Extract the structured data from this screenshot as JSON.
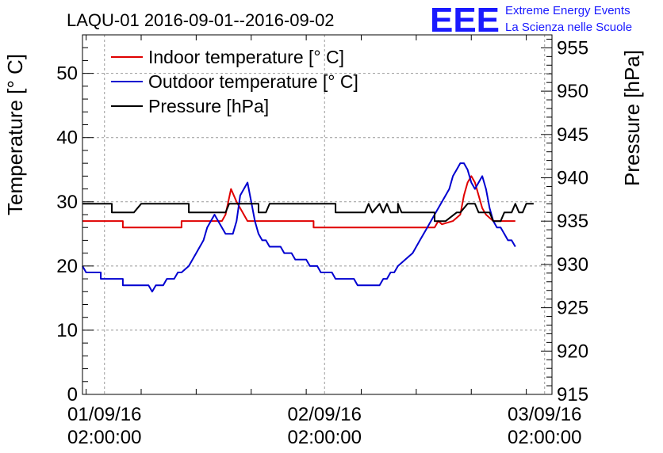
{
  "chart_data": {
    "type": "line",
    "title": "LAQU-01 2016-09-01--2016-09-02",
    "logo": {
      "mark": "EEE",
      "line1": "Extreme Energy Events",
      "line2": "La Scienza nelle Scuole",
      "color": "#1a1aff"
    },
    "ylabel_left": "Temperature [° C]",
    "ylabel_right": "Pressure [hPa]",
    "ylim_left": [
      0,
      56
    ],
    "ylim_right": [
      915,
      956.5
    ],
    "xlim_hours": [
      -6,
      122
    ],
    "y_left_ticks": [
      0,
      10,
      20,
      30,
      40,
      50
    ],
    "y_left_tick_labels": [
      "0",
      "10",
      "20",
      "30",
      "40",
      "50"
    ],
    "y_right_ticks": [
      915,
      920,
      925,
      930,
      935,
      940,
      945,
      950,
      955
    ],
    "y_right_tick_labels": [
      "915",
      "920",
      "925",
      "930",
      "935",
      "940",
      "945",
      "950",
      "955"
    ],
    "x_ticks_hours": [
      0,
      60,
      120
    ],
    "x_tick_labels": [
      {
        "date": "01/09/16",
        "time": "02:00:00"
      },
      {
        "date": "02/09/16",
        "time": "02:00:00"
      },
      {
        "date": "03/09/16",
        "time": "02:00:00"
      }
    ],
    "grid": true,
    "legend_position": "top-left",
    "series": [
      {
        "name": "Indoor temperature [° C]",
        "axis": "left",
        "color": "#e00000",
        "points": [
          [
            -6,
            27
          ],
          [
            5,
            27
          ],
          [
            5,
            26
          ],
          [
            21,
            26
          ],
          [
            21,
            27
          ],
          [
            32,
            27
          ],
          [
            33,
            28
          ],
          [
            34.5,
            32
          ],
          [
            36,
            30
          ],
          [
            37,
            29
          ],
          [
            38,
            28
          ],
          [
            39,
            27
          ],
          [
            57,
            27
          ],
          [
            57,
            26
          ],
          [
            90,
            26
          ],
          [
            91,
            27
          ],
          [
            92,
            26.5
          ],
          [
            95,
            27
          ],
          [
            97,
            28
          ],
          [
            98,
            31
          ],
          [
            99,
            33
          ],
          [
            100,
            34
          ],
          [
            101,
            33
          ],
          [
            102,
            31
          ],
          [
            103,
            29
          ],
          [
            104,
            28
          ],
          [
            106,
            27
          ],
          [
            108,
            27
          ],
          [
            112,
            27
          ]
        ]
      },
      {
        "name": "Outdoor temperature [° C]",
        "axis": "left",
        "color": "#0000d0",
        "points": [
          [
            -6,
            20
          ],
          [
            -5,
            19
          ],
          [
            -1,
            19
          ],
          [
            -1,
            18
          ],
          [
            5,
            18
          ],
          [
            5,
            17
          ],
          [
            12,
            17
          ],
          [
            13,
            16
          ],
          [
            14,
            17
          ],
          [
            16,
            17
          ],
          [
            17,
            18
          ],
          [
            19,
            18
          ],
          [
            20,
            19
          ],
          [
            21,
            19
          ],
          [
            23,
            20
          ],
          [
            25,
            22
          ],
          [
            26,
            23
          ],
          [
            27,
            24
          ],
          [
            28,
            26
          ],
          [
            29,
            27
          ],
          [
            30,
            28
          ],
          [
            31,
            27
          ],
          [
            32,
            26
          ],
          [
            33,
            25
          ],
          [
            35,
            25
          ],
          [
            36,
            27
          ],
          [
            37,
            31
          ],
          [
            38,
            32
          ],
          [
            39,
            33
          ],
          [
            40,
            30
          ],
          [
            41,
            27
          ],
          [
            42,
            25
          ],
          [
            43,
            24
          ],
          [
            44,
            24
          ],
          [
            45,
            23
          ],
          [
            48,
            23
          ],
          [
            49,
            22
          ],
          [
            51,
            22
          ],
          [
            52,
            21
          ],
          [
            55,
            21
          ],
          [
            56,
            20
          ],
          [
            58,
            20
          ],
          [
            59,
            19
          ],
          [
            62,
            19
          ],
          [
            63,
            18
          ],
          [
            68,
            18
          ],
          [
            69,
            17
          ],
          [
            75,
            17
          ],
          [
            76,
            18
          ],
          [
            77,
            18
          ],
          [
            78,
            19
          ],
          [
            79,
            19
          ],
          [
            80,
            20
          ],
          [
            82,
            21
          ],
          [
            84,
            22
          ],
          [
            86,
            24
          ],
          [
            88,
            26
          ],
          [
            90,
            28
          ],
          [
            92,
            30
          ],
          [
            94,
            32
          ],
          [
            95,
            34
          ],
          [
            96,
            35
          ],
          [
            97,
            36
          ],
          [
            98,
            36
          ],
          [
            99,
            35
          ],
          [
            100,
            33
          ],
          [
            101,
            32
          ],
          [
            102,
            33
          ],
          [
            103,
            34
          ],
          [
            104,
            32
          ],
          [
            105,
            29
          ],
          [
            106,
            27
          ],
          [
            107,
            26
          ],
          [
            108,
            26
          ],
          [
            109,
            25
          ],
          [
            110,
            24
          ],
          [
            111,
            24
          ],
          [
            112,
            23
          ]
        ]
      },
      {
        "name": "Pressure [hPa]",
        "axis": "right",
        "color": "#000000",
        "points": [
          [
            -6,
            937
          ],
          [
            2,
            937
          ],
          [
            2,
            936
          ],
          [
            8,
            936
          ],
          [
            10,
            937
          ],
          [
            23,
            937
          ],
          [
            23,
            936
          ],
          [
            33,
            936
          ],
          [
            34,
            937
          ],
          [
            42,
            937
          ],
          [
            42,
            936
          ],
          [
            44,
            936
          ],
          [
            45,
            937
          ],
          [
            63,
            937
          ],
          [
            63,
            936
          ],
          [
            71,
            936
          ],
          [
            72,
            937
          ],
          [
            73,
            936
          ],
          [
            75,
            937
          ],
          [
            76,
            936
          ],
          [
            77,
            937
          ],
          [
            78,
            936
          ],
          [
            80,
            936
          ],
          [
            80,
            937
          ],
          [
            81,
            936
          ],
          [
            90,
            936
          ],
          [
            90,
            935
          ],
          [
            93,
            935
          ],
          [
            96,
            936
          ],
          [
            97,
            936
          ],
          [
            99,
            937
          ],
          [
            101,
            937
          ],
          [
            102,
            936
          ],
          [
            105,
            936
          ],
          [
            106,
            935
          ],
          [
            108,
            935
          ],
          [
            109,
            936
          ],
          [
            111,
            936
          ],
          [
            112,
            937
          ],
          [
            113,
            936
          ],
          [
            114,
            936
          ],
          [
            115,
            937
          ],
          [
            117,
            937
          ]
        ]
      }
    ]
  }
}
